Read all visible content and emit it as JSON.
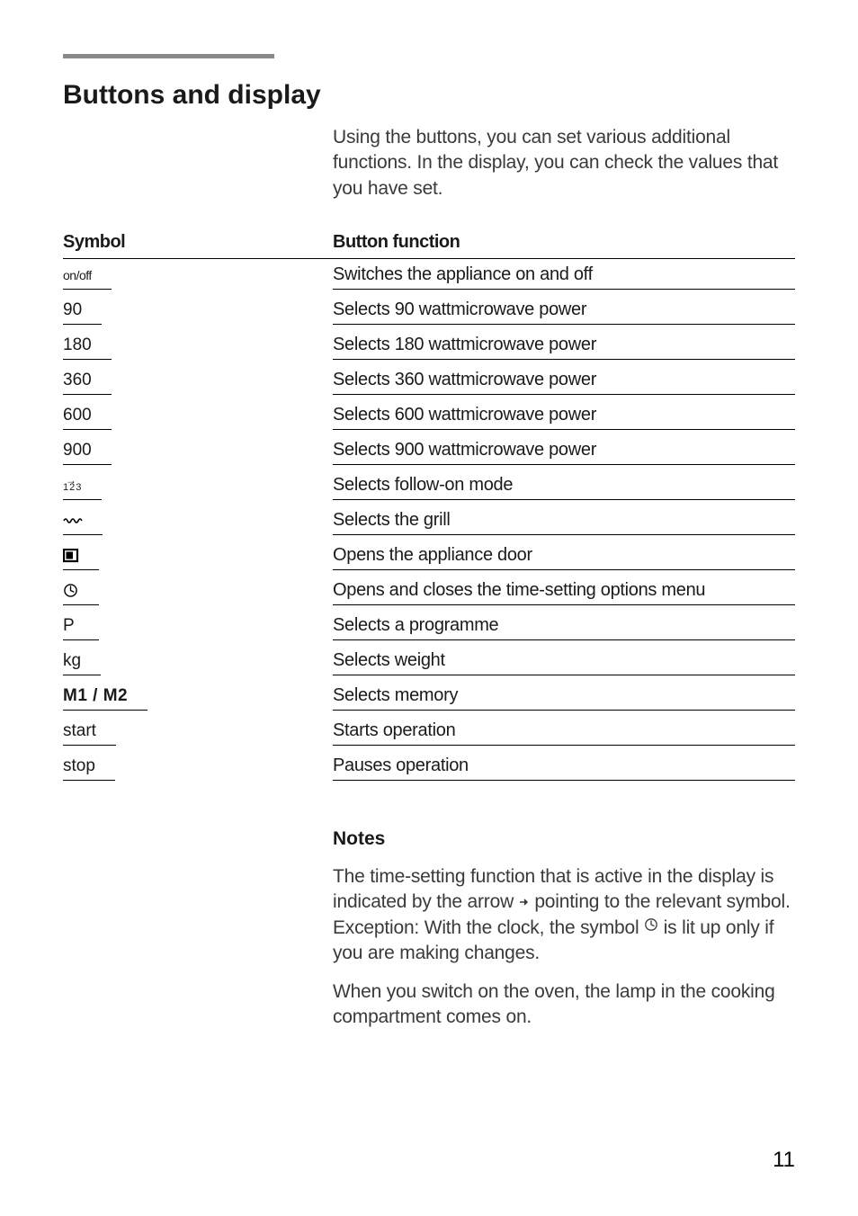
{
  "heading": "Buttons and display",
  "intro": "Using the buttons, you can set various additional functions. In the display, you can check the values that you have set.",
  "columns": {
    "symbol": "Symbol",
    "function": "Button function"
  },
  "rows": [
    {
      "symbol_kind": "text-small",
      "symbol": "on/off",
      "function": "Switches the appliance on and off"
    },
    {
      "symbol_kind": "text",
      "symbol": "90",
      "function": "Selects 90 wattmicrowave power"
    },
    {
      "symbol_kind": "text",
      "symbol": "180",
      "function": "Selects 180 wattmicrowave power"
    },
    {
      "symbol_kind": "text",
      "symbol": "360",
      "function": "Selects 360 wattmicrowave power"
    },
    {
      "symbol_kind": "text",
      "symbol": "600",
      "function": "Selects 600 wattmicrowave power"
    },
    {
      "symbol_kind": "text",
      "symbol": "900",
      "function": "Selects 900 wattmicrowave power"
    },
    {
      "symbol_kind": "seq123",
      "symbol": "123",
      "function": "Selects follow-on mode"
    },
    {
      "symbol_kind": "grill",
      "symbol": "grill",
      "function": "Selects the grill"
    },
    {
      "symbol_kind": "door",
      "symbol": "door",
      "function": "Opens the appliance door"
    },
    {
      "symbol_kind": "clock",
      "symbol": "clock",
      "function": "Opens and closes the time-setting options menu"
    },
    {
      "symbol_kind": "letter",
      "symbol": "P",
      "function": "Selects a programme"
    },
    {
      "symbol_kind": "text",
      "symbol": "kg",
      "function": "Selects weight"
    },
    {
      "symbol_kind": "bold",
      "symbol": "M1 / M2",
      "function": "Selects memory"
    },
    {
      "symbol_kind": "text",
      "symbol": "start",
      "function": "Starts operation"
    },
    {
      "symbol_kind": "text",
      "symbol": "stop",
      "function": "Pauses operation"
    }
  ],
  "notes": {
    "heading": "Notes",
    "p1a": "The time-setting function that is active in the display is indicated by the arrow ",
    "p1b": " pointing to the relevant symbol.",
    "p1c": "Exception: With the clock, the symbol ",
    "p1d": " is lit up only if you are making changes.",
    "p2": "When you switch on the oven, the lamp in the cooking compartment comes on."
  },
  "page_number": "11",
  "colors": {
    "rule": "#898989",
    "text_body": "#3a3a3a",
    "text_heading": "#1a1a1a"
  }
}
